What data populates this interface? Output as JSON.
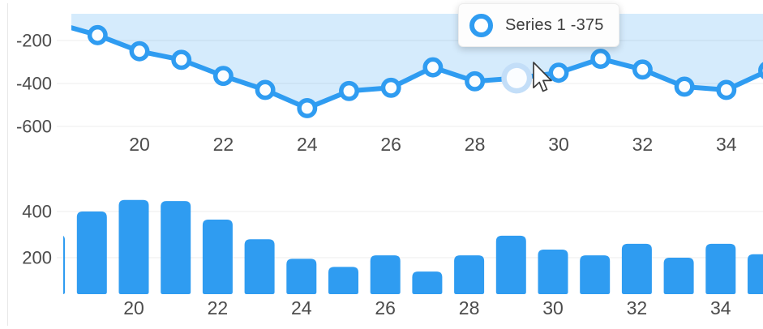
{
  "tooltip": {
    "series_label": "Series 1",
    "value": -375,
    "text": "Series 1 -375"
  },
  "colors": {
    "accent_blue": "#2f9cf1",
    "area_fill": "rgba(47,156,241,0.2)",
    "gridline": "#ececec",
    "axis_label": "#4c4c4c",
    "tooltip_bg": "#fdfdfd",
    "tooltip_text": "#3d3d3d",
    "hover_halo": "#c3def8",
    "marker_fill": "#fbfdfe"
  },
  "chart_data": [
    {
      "type": "line",
      "series": [
        {
          "name": "Series 1",
          "x": [
            18,
            19,
            20,
            21,
            22,
            23,
            24,
            25,
            26,
            27,
            28,
            29,
            30,
            31,
            32,
            33,
            34,
            35
          ],
          "values": [
            -120,
            -175,
            -250,
            -290,
            -365,
            -430,
            -515,
            -435,
            -420,
            -325,
            -390,
            -375,
            -350,
            -285,
            -335,
            -415,
            -430,
            -340
          ]
        }
      ],
      "x_ticks": [
        20,
        22,
        24,
        26,
        28,
        30,
        32,
        34
      ],
      "y_ticks": [
        -200,
        -400,
        -600
      ],
      "xlim": [
        18.4,
        35
      ],
      "ylim": [
        -626,
        -76
      ],
      "grid": true,
      "area_fill": true,
      "markers": "circle",
      "legend_position": "none",
      "hover_point": {
        "x": 29,
        "value": -375
      }
    },
    {
      "type": "bar",
      "categories": [
        18,
        19,
        20,
        21,
        22,
        23,
        24,
        25,
        26,
        27,
        28,
        29,
        30,
        31,
        32,
        33,
        34,
        35
      ],
      "values": [
        300,
        400,
        450,
        445,
        365,
        280,
        195,
        160,
        210,
        140,
        210,
        295,
        235,
        210,
        260,
        200,
        260,
        215
      ],
      "x_ticks": [
        20,
        22,
        24,
        26,
        28,
        30,
        32,
        34
      ],
      "y_ticks": [
        400,
        200
      ],
      "xlim": [
        18.3,
        35
      ],
      "ylim": [
        46,
        512
      ],
      "grid": true,
      "legend_position": "none"
    }
  ]
}
